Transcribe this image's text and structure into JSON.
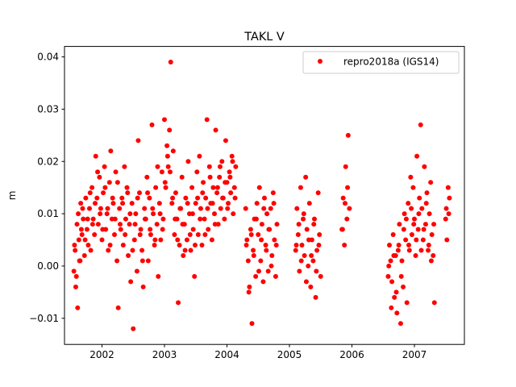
{
  "chart_data": {
    "type": "scatter",
    "title": "TAKL V",
    "xlabel": "",
    "ylabel": "m",
    "xlim": [
      2001.4,
      2007.8
    ],
    "ylim": [
      -0.015,
      0.042
    ],
    "x_ticks": [
      2002,
      2003,
      2004,
      2005,
      2006,
      2007
    ],
    "x_tick_labels": [
      "2002",
      "2003",
      "2004",
      "2005",
      "2006",
      "2007"
    ],
    "y_ticks": [
      -0.01,
      0.0,
      0.01,
      0.02,
      0.03,
      0.04
    ],
    "y_tick_labels": [
      "−0.01",
      "0.00",
      "0.01",
      "0.02",
      "0.03",
      "0.04"
    ],
    "grid": false,
    "legend_position": "top-right",
    "series": [
      {
        "name": "repro2018a (IGS14)",
        "color": "#ff0000",
        "marker": "circle",
        "x": [
          2001.55,
          2001.57,
          2001.58,
          2001.6,
          2001.61,
          2001.63,
          2001.65,
          2001.66,
          2001.68,
          2001.7,
          2001.72,
          2001.74,
          2001.76,
          2001.78,
          2001.8,
          2001.82,
          2001.84,
          2001.86,
          2001.88,
          2001.9,
          2001.92,
          2001.94,
          2001.96,
          2001.98,
          2002.0,
          2002.02,
          2002.04,
          2002.06,
          2002.08,
          2002.1,
          2002.12,
          2002.14,
          2002.16,
          2002.18,
          2002.2,
          2002.22,
          2002.24,
          2002.26,
          2002.28,
          2002.3,
          2002.32,
          2002.34,
          2002.36,
          2002.38,
          2002.4,
          2002.42,
          2002.44,
          2002.46,
          2002.48,
          2002.5,
          2002.52,
          2002.54,
          2002.56,
          2002.58,
          2002.6,
          2002.62,
          2002.64,
          2002.66,
          2002.68,
          2002.7,
          2002.72,
          2002.74,
          2002.76,
          2002.78,
          2002.8,
          2002.82,
          2002.84,
          2002.86,
          2002.88,
          2002.9,
          2002.92,
          2002.94,
          2002.96,
          2002.98,
          2003.0,
          2003.02,
          2003.04,
          2003.06,
          2003.08,
          2003.1,
          2003.12,
          2003.14,
          2003.16,
          2003.18,
          2003.2,
          2003.22,
          2003.24,
          2003.26,
          2003.28,
          2003.3,
          2003.32,
          2003.34,
          2003.36,
          2003.38,
          2003.4,
          2003.42,
          2003.44,
          2003.46,
          2003.48,
          2003.5,
          2003.52,
          2003.54,
          2003.56,
          2003.58,
          2003.6,
          2003.62,
          2003.64,
          2003.66,
          2003.68,
          2003.7,
          2003.72,
          2003.74,
          2003.76,
          2003.78,
          2003.8,
          2003.82,
          2003.84,
          2003.86,
          2003.88,
          2003.9,
          2003.92,
          2003.94,
          2003.96,
          2003.98,
          2004.0,
          2004.02,
          2004.04,
          2004.06,
          2004.08,
          2004.1,
          2004.12,
          2004.14,
          2004.3,
          2004.32,
          2004.34,
          2004.36,
          2004.38,
          2004.4,
          2004.42,
          2004.44,
          2004.46,
          2004.48,
          2004.5,
          2004.52,
          2004.54,
          2004.56,
          2004.58,
          2004.6,
          2004.62,
          2004.64,
          2004.66,
          2004.68,
          2004.7,
          2004.72,
          2004.74,
          2004.76,
          2004.78,
          2004.8,
          2005.1,
          2005.12,
          2005.14,
          2005.16,
          2005.18,
          2005.2,
          2005.22,
          2005.24,
          2005.26,
          2005.28,
          2005.3,
          2005.32,
          2005.34,
          2005.36,
          2005.38,
          2005.4,
          2005.42,
          2005.44,
          2005.46,
          2005.48,
          2005.5,
          2005.84,
          2005.86,
          2005.88,
          2005.9,
          2005.92,
          2005.94,
          2005.96,
          2006.58,
          2006.6,
          2006.62,
          2006.64,
          2006.66,
          2006.68,
          2006.7,
          2006.72,
          2006.74,
          2006.76,
          2006.78,
          2006.8,
          2006.82,
          2006.84,
          2006.86,
          2006.88,
          2006.9,
          2006.92,
          2006.94,
          2006.96,
          2006.98,
          2007.0,
          2007.02,
          2007.04,
          2007.06,
          2007.08,
          2007.1,
          2007.12,
          2007.14,
          2007.16,
          2007.18,
          2007.2,
          2007.22,
          2007.24,
          2007.26,
          2007.28,
          2007.3,
          2007.32,
          2007.5,
          2007.52,
          2007.54,
          2007.56,
          2001.56,
          2001.59,
          2001.62,
          2001.64,
          2001.67,
          2001.69,
          2001.73,
          2001.77,
          2001.81,
          2001.85,
          2001.89,
          2001.93,
          2001.97,
          2002.01,
          2002.05,
          2002.09,
          2002.13,
          2002.17,
          2002.21,
          2002.25,
          2002.29,
          2002.33,
          2002.37,
          2002.41,
          2002.45,
          2002.49,
          2002.53,
          2002.57,
          2002.61,
          2002.65,
          2002.69,
          2002.73,
          2002.77,
          2002.81,
          2002.85,
          2002.89,
          2002.93,
          2002.97,
          2003.01,
          2003.05,
          2003.09,
          2003.13,
          2003.17,
          2003.21,
          2003.25,
          2003.29,
          2003.33,
          2003.37,
          2003.41,
          2003.45,
          2003.49,
          2003.53,
          2003.57,
          2003.61,
          2003.65,
          2003.69,
          2003.73,
          2003.77,
          2003.81,
          2003.85,
          2003.89,
          2003.93,
          2003.97,
          2004.01,
          2004.05,
          2004.09,
          2004.13,
          2004.31,
          2004.35,
          2004.39,
          2004.43,
          2004.47,
          2004.51,
          2004.55,
          2004.59,
          2004.63,
          2004.67,
          2004.71,
          2004.75,
          2004.79,
          2005.11,
          2005.15,
          2005.19,
          2005.23,
          2005.27,
          2005.31,
          2005.35,
          2005.39,
          2005.43,
          2005.47,
          2005.85,
          2005.89,
          2005.93,
          2006.59,
          2006.63,
          2006.67,
          2006.71,
          2006.75,
          2006.79,
          2006.83,
          2006.87,
          2006.91,
          2006.95,
          2006.99,
          2007.03,
          2007.07,
          2007.11,
          2007.15,
          2007.19,
          2007.23,
          2007.27,
          2007.31,
          2007.51,
          2007.55
        ],
        "y": [
          -0.001,
          0.003,
          -0.004,
          0.008,
          -0.008,
          0.005,
          0.001,
          0.012,
          0.006,
          0.009,
          0.002,
          0.013,
          0.007,
          0.004,
          0.011,
          0.003,
          0.015,
          0.009,
          0.006,
          0.021,
          0.013,
          0.008,
          0.017,
          0.011,
          0.005,
          0.014,
          0.019,
          0.007,
          0.01,
          0.003,
          0.016,
          0.022,
          0.009,
          0.012,
          0.006,
          0.018,
          0.001,
          -0.008,
          0.011,
          0.007,
          0.013,
          0.004,
          0.019,
          0.009,
          0.015,
          0.002,
          0.008,
          -0.003,
          0.012,
          -0.012,
          0.005,
          0.01,
          -0.001,
          0.024,
          0.014,
          0.007,
          0.003,
          -0.004,
          0.011,
          0.009,
          0.017,
          0.001,
          0.013,
          0.006,
          0.027,
          0.01,
          0.004,
          0.015,
          0.008,
          -0.002,
          0.012,
          0.005,
          0.018,
          0.009,
          0.028,
          0.015,
          0.023,
          0.019,
          0.026,
          0.039,
          0.012,
          0.022,
          0.006,
          0.014,
          0.009,
          -0.007,
          0.004,
          0.011,
          0.017,
          0.002,
          0.008,
          0.013,
          0.005,
          0.02,
          0.01,
          0.003,
          0.015,
          0.007,
          -0.002,
          0.012,
          0.018,
          0.006,
          0.021,
          0.011,
          0.004,
          0.016,
          0.009,
          0.013,
          0.028,
          0.007,
          0.019,
          0.012,
          0.005,
          0.015,
          0.01,
          0.026,
          0.014,
          0.008,
          0.017,
          0.011,
          0.02,
          0.013,
          0.009,
          0.024,
          0.016,
          0.012,
          0.018,
          0.014,
          0.021,
          0.01,
          0.015,
          0.019,
          0.011,
          0.005,
          0.001,
          -0.004,
          0.007,
          -0.011,
          0.003,
          0.009,
          -0.002,
          0.012,
          0.006,
          0.015,
          0.001,
          0.008,
          -0.003,
          0.013,
          0.004,
          0.01,
          -0.001,
          0.007,
          0.011,
          0.002,
          0.014,
          0.005,
          -0.002,
          0.008,
          0.003,
          0.011,
          0.006,
          -0.001,
          0.015,
          0.004,
          0.009,
          0.002,
          0.017,
          0.007,
          0.0,
          0.012,
          -0.004,
          0.005,
          0.001,
          0.009,
          -0.006,
          0.003,
          0.014,
          0.006,
          -0.002,
          0.007,
          0.013,
          0.004,
          0.019,
          0.009,
          0.025,
          0.011,
          -0.002,
          0.004,
          0.001,
          -0.003,
          0.006,
          -0.006,
          0.002,
          -0.009,
          0.003,
          0.008,
          -0.011,
          0.001,
          -0.004,
          0.01,
          0.005,
          -0.007,
          0.012,
          0.003,
          0.017,
          0.006,
          0.015,
          0.009,
          0.002,
          0.021,
          0.007,
          0.013,
          0.027,
          0.011,
          0.005,
          0.019,
          0.008,
          0.014,
          0.003,
          0.01,
          0.016,
          0.006,
          0.002,
          -0.007,
          0.009,
          0.005,
          0.015,
          0.013,
          0.004,
          -0.002,
          0.01,
          0.001,
          0.007,
          0.011,
          0.005,
          0.009,
          0.014,
          0.008,
          0.012,
          0.018,
          0.01,
          0.007,
          0.015,
          0.011,
          0.004,
          0.013,
          0.009,
          0.016,
          0.008,
          0.012,
          0.006,
          0.014,
          0.01,
          0.003,
          0.008,
          0.013,
          0.006,
          0.001,
          0.009,
          0.014,
          0.007,
          0.011,
          0.005,
          0.019,
          0.01,
          0.007,
          0.016,
          0.021,
          0.018,
          0.013,
          0.009,
          0.005,
          0.011,
          0.008,
          0.003,
          0.012,
          0.006,
          0.01,
          0.004,
          0.013,
          0.009,
          0.014,
          0.006,
          0.011,
          0.017,
          0.012,
          0.008,
          0.015,
          0.019,
          0.013,
          0.016,
          0.011,
          0.017,
          0.02,
          0.013,
          0.004,
          -0.005,
          0.006,
          0.002,
          0.009,
          -0.001,
          0.005,
          0.011,
          0.003,
          0.007,
          0.0,
          0.012,
          0.004,
          0.004,
          0.008,
          0.001,
          0.01,
          -0.003,
          0.005,
          0.002,
          0.008,
          -0.001,
          0.004,
          0.007,
          0.012,
          0.015,
          0.0,
          -0.008,
          0.002,
          -0.005,
          0.004,
          -0.002,
          0.007,
          0.009,
          0.004,
          0.011,
          0.008,
          0.005,
          0.01,
          0.003,
          0.007,
          0.012,
          0.004,
          0.001,
          0.008,
          0.011,
          0.01
        ]
      }
    ]
  }
}
